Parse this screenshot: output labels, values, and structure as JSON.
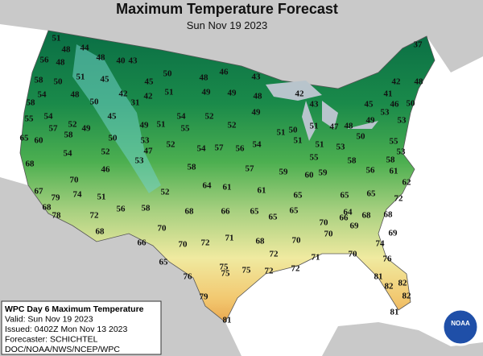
{
  "header": {
    "title": "Maximum Temperature Forecast",
    "subtitle": "Sun Nov 19 2023"
  },
  "map": {
    "labels": [
      51,
      48,
      44,
      48,
      40,
      43,
      37,
      56,
      48,
      51,
      45,
      50,
      48,
      46,
      43,
      42,
      48,
      58,
      50,
      45,
      51,
      58,
      54,
      48,
      50,
      42,
      31,
      42,
      49,
      49,
      48,
      42,
      43,
      41,
      46,
      50,
      53,
      55,
      54,
      52,
      45,
      54,
      52,
      49,
      45,
      65,
      57,
      49,
      49,
      51,
      55,
      52,
      51,
      50,
      51,
      47,
      48,
      49,
      53,
      60,
      58,
      50,
      53,
      52,
      51,
      51,
      53,
      50,
      55,
      53,
      68,
      54,
      52,
      47,
      54,
      57,
      56,
      54,
      55,
      58,
      58,
      70,
      46,
      53,
      58,
      57,
      59,
      60,
      59,
      56,
      61,
      62,
      67,
      74,
      51,
      64,
      61,
      61,
      79,
      68,
      52,
      65,
      65,
      65,
      72,
      78,
      72,
      56,
      58,
      68,
      66,
      65,
      65,
      65,
      64,
      68,
      68,
      68,
      70,
      71,
      70,
      66,
      69,
      69,
      66,
      70,
      72,
      68,
      70,
      70,
      65,
      76,
      75,
      75,
      72,
      72,
      71,
      70,
      74,
      76,
      79,
      75,
      72,
      81,
      82,
      82,
      81,
      81,
      82
    ]
  },
  "info": {
    "lines": [
      "WPC Day 6 Maximum Temperature",
      "Valid: Sun Nov 19 2023",
      "Issued: 0402Z Mon Nov 13 2023",
      "Forecaster: SCHICHTEL",
      "DOC/NOAA/NWS/NCEP/WPC"
    ],
    "logo": "NOAA"
  }
}
